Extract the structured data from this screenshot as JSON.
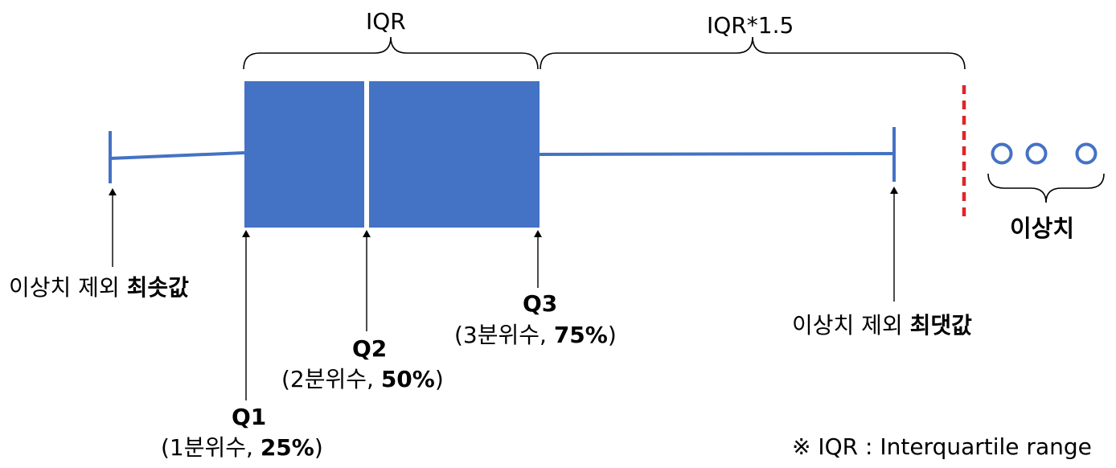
{
  "brace_labels": {
    "iqr": "IQR",
    "iqr_15": "IQR*1.5"
  },
  "min_label": {
    "prefix": "이상치 제외 ",
    "bold": "최솟값"
  },
  "max_label": {
    "prefix": "이상치 제외 ",
    "bold": "최댓값"
  },
  "outlier_label": "이상치",
  "q1": {
    "name": "Q1",
    "desc_prefix": "(1분위수, ",
    "desc_bold": "25%",
    "desc_suffix": ")"
  },
  "q2": {
    "name": "Q2",
    "desc_prefix": "(2분위수, ",
    "desc_bold": "50%",
    "desc_suffix": ")"
  },
  "q3": {
    "name": "Q3",
    "desc_prefix": "(3분위수, ",
    "desc_bold": "75%",
    "desc_suffix": ")"
  },
  "footnote": "※ IQR : Interquartile range",
  "colors": {
    "box": "#4472C4",
    "fence": "#E0242A",
    "whisker": "#4472C4",
    "text": "#000000"
  }
}
